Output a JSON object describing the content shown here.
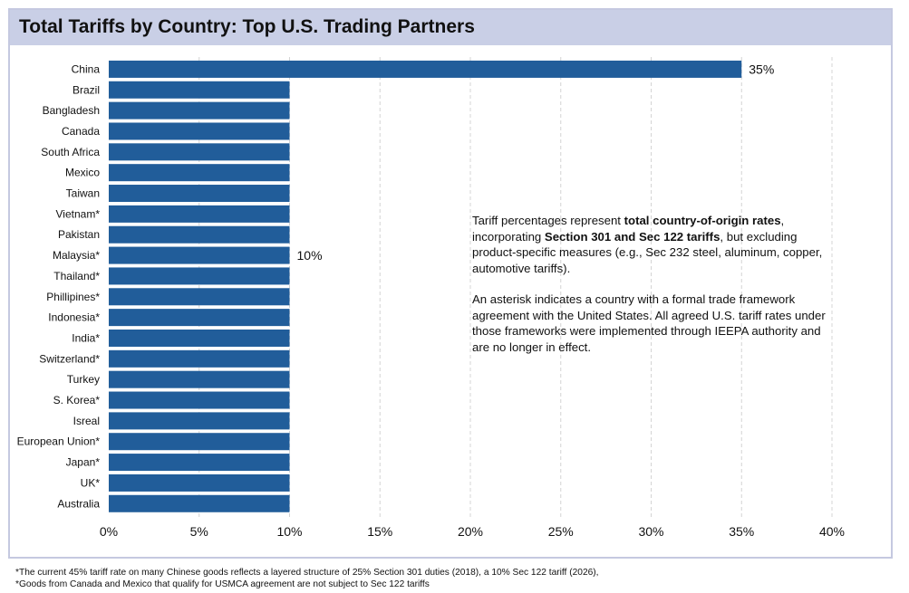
{
  "title": "Total Tariffs by Country: Top U.S. Trading Partners",
  "chart_data": {
    "type": "bar",
    "orientation": "horizontal",
    "categories": [
      "China",
      "Brazil",
      "Bangladesh",
      "Canada",
      "South Africa",
      "Mexico",
      "Taiwan",
      "Vietnam*",
      "Pakistan",
      "Malaysia*",
      "Thailand*",
      "Phillipines*",
      "Indonesia*",
      "India*",
      "Switzerland*",
      "Turkey",
      "S. Korea*",
      "Isreal",
      "European Union*",
      "Japan*",
      "UK*",
      "Australia"
    ],
    "values": [
      35,
      10,
      10,
      10,
      10,
      10,
      10,
      10,
      10,
      10,
      10,
      10,
      10,
      10,
      10,
      10,
      10,
      10,
      10,
      10,
      10,
      10
    ],
    "unit": "%",
    "xlim": [
      0,
      40
    ],
    "xticks": [
      0,
      5,
      10,
      15,
      20,
      25,
      30,
      35,
      40
    ],
    "xtick_labels": [
      "0%",
      "5%",
      "10%",
      "15%",
      "20%",
      "25%",
      "30%",
      "35%",
      "40%"
    ],
    "grid": "vertical dashed",
    "bar_color": "#215d9a",
    "data_labels": [
      {
        "category": "China",
        "text": "35%"
      },
      {
        "category": "Malaysia*",
        "text": "10%"
      }
    ]
  },
  "note": {
    "p1_a": "Tariff percentages represent ",
    "p1_b": "total country-of-origin rates",
    "p1_c": ", incorporating ",
    "p1_d": "Section 301 and Sec 122 tariffs",
    "p1_e": ", but excluding product-specific measures (e.g., Sec 232 steel, aluminum, copper, automotive tariffs).",
    "p2": "An asterisk indicates a country with a formal trade framework agreement with the United States. All agreed U.S. tariff rates under those frameworks were implemented through IEEPA authority and are no longer in effect."
  },
  "footnotes": [
    "*The current 45% tariff rate on many Chinese goods reflects a layered structure of 25% Section 301 duties (2018), a 10% Sec 122 tariff (2026),",
    "*Goods from Canada and Mexico that qualify for USMCA agreement are not subject to Sec 122 tariffs"
  ],
  "colors": {
    "bar": "#215d9a",
    "title_bg": "#c9cfe6",
    "frame": "#c5c9e0",
    "grid": "#d4d4d4"
  }
}
